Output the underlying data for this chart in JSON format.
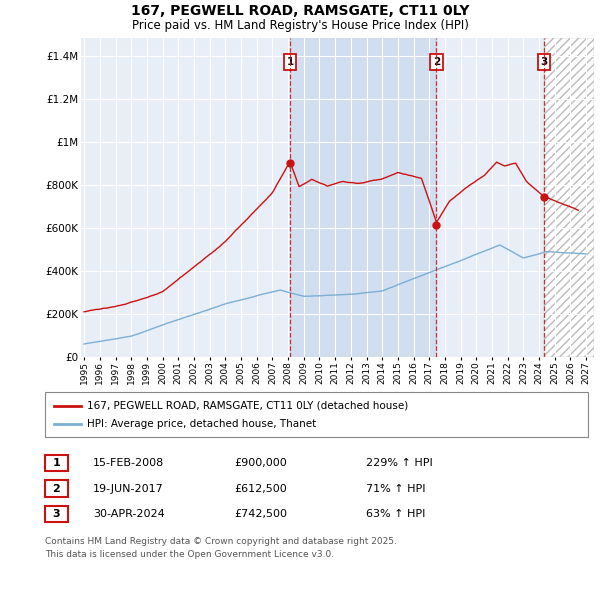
{
  "title": "167, PEGWELL ROAD, RAMSGATE, CT11 0LY",
  "subtitle": "Price paid vs. HM Land Registry's House Price Index (HPI)",
  "ylabel_ticks": [
    "£0",
    "£200K",
    "£400K",
    "£600K",
    "£800K",
    "£1M",
    "£1.2M",
    "£1.4M"
  ],
  "ylim": [
    0,
    1500000
  ],
  "xlim_start": 1994.8,
  "xlim_end": 2027.5,
  "hpi_color": "#7bafd4",
  "price_color": "#cc1111",
  "background_color": "#e8eef8",
  "grid_color": "#ffffff",
  "shade_color": "#c8d8ee",
  "hatch_color": "#cccccc",
  "sale_1_date": 2008.12,
  "sale_2_date": 2017.46,
  "sale_3_date": 2024.33,
  "sale_1_price": 900000,
  "sale_2_price": 612500,
  "sale_3_price": 742500,
  "legend_label_price": "167, PEGWELL ROAD, RAMSGATE, CT11 0LY (detached house)",
  "legend_label_hpi": "HPI: Average price, detached house, Thanet",
  "row1_num": "1",
  "row1_date": "15-FEB-2008",
  "row1_price": "£900,000",
  "row1_hpi": "229% ↑ HPI",
  "row2_num": "2",
  "row2_date": "19-JUN-2017",
  "row2_price": "£612,500",
  "row2_hpi": "71% ↑ HPI",
  "row3_num": "3",
  "row3_date": "30-APR-2024",
  "row3_price": "£742,500",
  "row3_hpi": "63% ↑ HPI",
  "footnote1": "Contains HM Land Registry data © Crown copyright and database right 2025.",
  "footnote2": "This data is licensed under the Open Government Licence v3.0."
}
